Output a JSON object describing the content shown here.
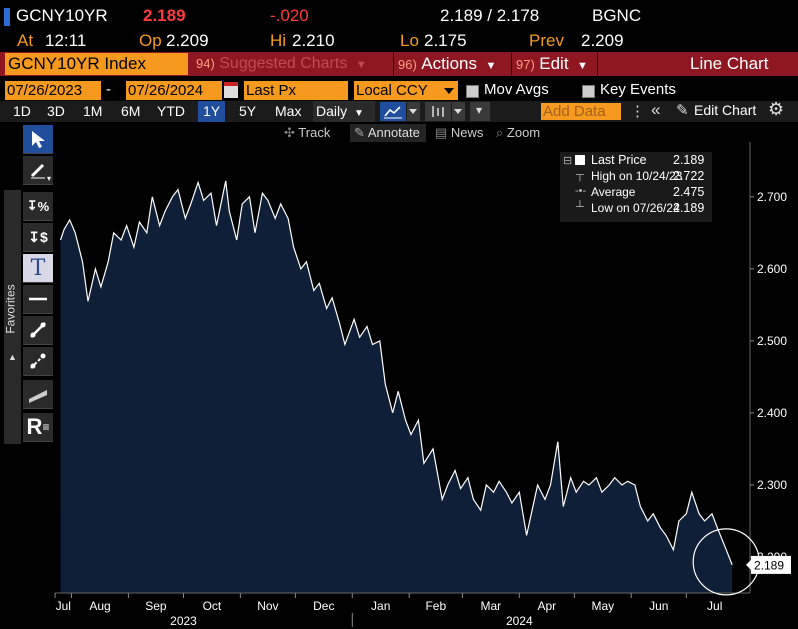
{
  "header": {
    "ticker": "GCNY10YR",
    "last": "2.189",
    "change": "-.020",
    "bid_ask": "2.189 / 2.178",
    "source": "BGNC",
    "at_label": "At",
    "at_time": "12:11",
    "op_label": "Op",
    "op_value": "2.209",
    "hi_label": "Hi",
    "hi_value": "2.210",
    "lo_label": "Lo",
    "lo_value": "2.175",
    "prev_label": "Prev",
    "prev_value": "2.209"
  },
  "menubar": {
    "security": "GCNY10YR Index",
    "suggested_num": "94)",
    "suggested_label": "Suggested Charts",
    "actions_num": "96)",
    "actions_label": "Actions",
    "edit_num": "97)",
    "edit_label": "Edit",
    "chart_type": "Line Chart"
  },
  "params": {
    "start_date": "07/26/2023",
    "dash": "-",
    "end_date": "07/26/2024",
    "price_field": "Last Px",
    "currency": "Local CCY",
    "mov_avgs": "Mov Avgs",
    "key_events": "Key Events"
  },
  "ranges": {
    "items": [
      "1D",
      "3D",
      "1M",
      "6M",
      "YTD",
      "1Y",
      "5Y",
      "Max"
    ],
    "selected": "1Y",
    "periodicity": "Daily",
    "add_data": "Add Data",
    "edit_chart": "Edit Chart"
  },
  "toolbar": {
    "track": "Track",
    "annotate": "Annotate",
    "news": "News",
    "zoom": "Zoom"
  },
  "sidebar": {
    "favorites": "Favorites",
    "percent_tool": "%",
    "dollar_tool": "$",
    "text_tool": "T",
    "r_tool": "R"
  },
  "legend": {
    "last_label": "Last Price",
    "last_value": "2.189",
    "high_label": "High on 10/24/23",
    "high_value": "2.722",
    "avg_label": "Average",
    "avg_value": "2.475",
    "low_label": "Low on 07/26/24",
    "low_value": "2.189"
  },
  "colors": {
    "area_fill": "#0e1f37",
    "line": "#ffffff",
    "last_change": "#ff3b3b",
    "orange": "#f59a1e",
    "maroon": "#8e1722"
  },
  "chart_data": {
    "type": "area",
    "title": "",
    "xlabel": "",
    "ylabel": "",
    "ylim": [
      2.15,
      2.765
    ],
    "y_ticks": [
      "2.700",
      "2.600",
      "2.500",
      "2.400",
      "2.300",
      "2.200"
    ],
    "x_ticks": [
      "Jul",
      "Aug",
      "Sep",
      "Oct",
      "Nov",
      "Dec",
      "Jan",
      "Feb",
      "Mar",
      "Apr",
      "May",
      "Jun",
      "Jul"
    ],
    "year_labels": [
      "2023",
      "2024"
    ],
    "last_value_label": "2.189",
    "x": [
      "2023-07-26",
      "2023-07-28",
      "2023-07-31",
      "2023-08-03",
      "2023-08-07",
      "2023-08-10",
      "2023-08-14",
      "2023-08-17",
      "2023-08-21",
      "2023-08-24",
      "2023-08-28",
      "2023-08-31",
      "2023-09-04",
      "2023-09-07",
      "2023-09-11",
      "2023-09-14",
      "2023-09-18",
      "2023-09-21",
      "2023-09-25",
      "2023-09-28",
      "2023-10-02",
      "2023-10-05",
      "2023-10-09",
      "2023-10-12",
      "2023-10-16",
      "2023-10-19",
      "2023-10-24",
      "2023-10-26",
      "2023-10-30",
      "2023-11-02",
      "2023-11-06",
      "2023-11-09",
      "2023-11-13",
      "2023-11-16",
      "2023-11-20",
      "2023-11-23",
      "2023-11-27",
      "2023-11-30",
      "2023-12-04",
      "2023-12-07",
      "2023-12-11",
      "2023-12-14",
      "2023-12-18",
      "2023-12-21",
      "2023-12-25",
      "2023-12-28",
      "2024-01-02",
      "2024-01-05",
      "2024-01-09",
      "2024-01-12",
      "2024-01-16",
      "2024-01-19",
      "2024-01-23",
      "2024-01-26",
      "2024-01-30",
      "2024-02-02",
      "2024-02-06",
      "2024-02-09",
      "2024-02-14",
      "2024-02-19",
      "2024-02-22",
      "2024-02-26",
      "2024-02-29",
      "2024-03-04",
      "2024-03-07",
      "2024-03-11",
      "2024-03-14",
      "2024-03-18",
      "2024-03-21",
      "2024-03-25",
      "2024-03-28",
      "2024-04-01",
      "2024-04-05",
      "2024-04-08",
      "2024-04-11",
      "2024-04-15",
      "2024-04-18",
      "2024-04-22",
      "2024-04-25",
      "2024-04-29",
      "2024-05-02",
      "2024-05-06",
      "2024-05-09",
      "2024-05-13",
      "2024-05-16",
      "2024-05-20",
      "2024-05-23",
      "2024-05-27",
      "2024-05-30",
      "2024-06-03",
      "2024-06-06",
      "2024-06-10",
      "2024-06-13",
      "2024-06-17",
      "2024-06-20",
      "2024-06-24",
      "2024-06-27",
      "2024-07-01",
      "2024-07-04",
      "2024-07-08",
      "2024-07-11",
      "2024-07-15",
      "2024-07-18",
      "2024-07-22",
      "2024-07-26"
    ],
    "series": [
      {
        "values": [
          2.64,
          2.655,
          2.668,
          2.65,
          2.61,
          2.555,
          2.6,
          2.575,
          2.61,
          2.65,
          2.64,
          2.66,
          2.63,
          2.665,
          2.65,
          2.7,
          2.66,
          2.68,
          2.7,
          2.71,
          2.67,
          2.69,
          2.72,
          2.695,
          2.705,
          2.66,
          2.722,
          2.68,
          2.64,
          2.69,
          2.7,
          2.65,
          2.705,
          2.695,
          2.67,
          2.69,
          2.67,
          2.63,
          2.6,
          2.61,
          2.57,
          2.58,
          2.545,
          2.56,
          2.525,
          2.495,
          2.53,
          2.505,
          2.52,
          2.495,
          2.5,
          2.44,
          2.4,
          2.43,
          2.39,
          2.37,
          2.39,
          2.33,
          2.35,
          2.28,
          2.3,
          2.32,
          2.295,
          2.31,
          2.28,
          2.265,
          2.3,
          2.29,
          2.305,
          2.29,
          2.275,
          2.29,
          2.23,
          2.265,
          2.3,
          2.28,
          2.3,
          2.36,
          2.27,
          2.31,
          2.29,
          2.305,
          2.3,
          2.31,
          2.29,
          2.3,
          2.31,
          2.3,
          2.305,
          2.3,
          2.27,
          2.25,
          2.26,
          2.24,
          2.23,
          2.21,
          2.25,
          2.26,
          2.29,
          2.26,
          2.25,
          2.26,
          2.24,
          2.215,
          2.189
        ]
      }
    ]
  }
}
